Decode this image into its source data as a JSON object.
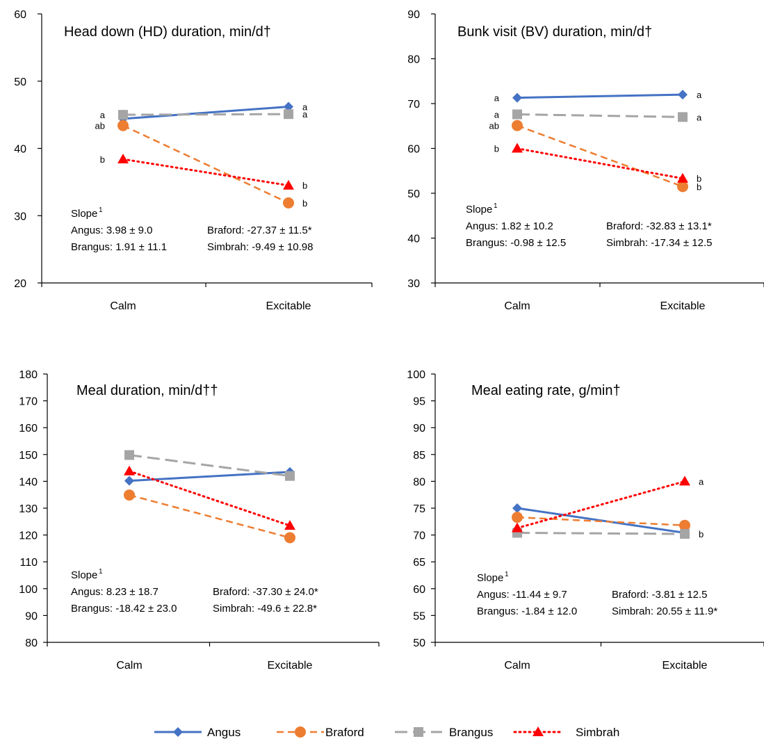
{
  "legend": [
    {
      "name": "Angus",
      "color": "#4472C4",
      "dash": "solid",
      "marker": "diamond"
    },
    {
      "name": "Braford",
      "color": "#ED7D31",
      "dash": "dash",
      "marker": "circle"
    },
    {
      "name": "Brangus",
      "color": "#A5A5A5",
      "dash": "longdash",
      "marker": "square"
    },
    {
      "name": "Simbrah",
      "color": "#FF0000",
      "dash": "dot",
      "marker": "triangle"
    }
  ],
  "chart_data": [
    {
      "type": "line",
      "title": "Head down (HD) duration, min/d†",
      "categories": [
        "Calm",
        "Excitable"
      ],
      "ylim": [
        20,
        60
      ],
      "yticks": [
        20,
        30,
        40,
        50,
        60
      ],
      "series": [
        {
          "name": "Angus",
          "values": [
            44.4,
            46.2
          ],
          "letters": [
            "",
            "a"
          ]
        },
        {
          "name": "Braford",
          "values": [
            43.4,
            31.9
          ],
          "letters": [
            "ab",
            "b"
          ]
        },
        {
          "name": "Brangus",
          "values": [
            45.0,
            45.1
          ],
          "letters": [
            "a",
            "a"
          ]
        },
        {
          "name": "Simbrah",
          "values": [
            38.4,
            34.5
          ],
          "letters": [
            "b",
            "b"
          ]
        }
      ],
      "slope_heading": "Slope",
      "slope_sup": "1",
      "slopes": [
        "Angus: 3.98 ± 9.0",
        "Braford: -27.37 ± 11.5*",
        "Brangus: 1.91 ± 11.1",
        "Simbrah: -9.49  ± 10.98"
      ]
    },
    {
      "type": "line",
      "title": "Bunk visit (BV) duration,  min/d†",
      "categories": [
        "Calm",
        "Excitable"
      ],
      "ylim": [
        30,
        90
      ],
      "yticks": [
        30,
        40,
        50,
        60,
        70,
        80,
        90
      ],
      "series": [
        {
          "name": "Angus",
          "values": [
            71.3,
            72.0
          ],
          "letters": [
            "a",
            "a"
          ]
        },
        {
          "name": "Braford",
          "values": [
            65.1,
            51.5
          ],
          "letters": [
            "ab",
            "b"
          ]
        },
        {
          "name": "Brangus",
          "values": [
            67.6,
            67.0
          ],
          "letters": [
            "a",
            "a"
          ]
        },
        {
          "name": "Simbrah",
          "values": [
            60.0,
            53.3
          ],
          "letters": [
            "b",
            "b"
          ]
        }
      ],
      "slope_heading": "Slope",
      "slope_sup": "1",
      "slopes": [
        "Angus: 1.82 ± 10.2",
        "Braford: -32.83 ± 13.1*",
        "Brangus: -0.98 ± 12.5",
        "Simbrah: -17.34  ± 12.5"
      ]
    },
    {
      "type": "line",
      "title": "Meal duration, min/d††",
      "categories": [
        "Calm",
        "Excitable"
      ],
      "ylim": [
        80,
        180
      ],
      "yticks": [
        80,
        90,
        100,
        110,
        120,
        130,
        140,
        150,
        160,
        170,
        180
      ],
      "series": [
        {
          "name": "Angus",
          "values": [
            140.2,
            143.5
          ],
          "letters": [
            "",
            ""
          ]
        },
        {
          "name": "Braford",
          "values": [
            134.9,
            119.0
          ],
          "letters": [
            "",
            ""
          ]
        },
        {
          "name": "Brangus",
          "values": [
            149.8,
            142.0
          ],
          "letters": [
            "",
            ""
          ]
        },
        {
          "name": "Simbrah",
          "values": [
            143.8,
            123.5
          ],
          "letters": [
            "",
            ""
          ]
        }
      ],
      "slope_heading": "Slope",
      "slope_sup": "1",
      "slopes": [
        "Angus: 8.23 ± 18.7",
        "Braford: -37.30 ± 24.0*",
        "Brangus: -18.42 ± 23.0",
        "Simbrah: -49.6 ± 22.8*"
      ]
    },
    {
      "type": "line",
      "title": "Meal eating rate, g/min†",
      "categories": [
        "Calm",
        "Excitable"
      ],
      "ylim": [
        50,
        100
      ],
      "yticks": [
        50,
        55,
        60,
        65,
        70,
        75,
        80,
        85,
        90,
        95,
        100
      ],
      "series": [
        {
          "name": "Angus",
          "values": [
            75.0,
            70.4
          ],
          "letters": [
            "",
            ""
          ]
        },
        {
          "name": "Braford",
          "values": [
            73.3,
            71.8
          ],
          "letters": [
            "",
            ""
          ]
        },
        {
          "name": "Brangus",
          "values": [
            70.4,
            70.2
          ],
          "letters": [
            "",
            "b"
          ]
        },
        {
          "name": "Simbrah",
          "values": [
            71.3,
            80.0
          ],
          "letters": [
            "",
            "a"
          ]
        }
      ],
      "slope_heading": "Slope",
      "slope_sup": "1",
      "slopes": [
        "Angus: -11.44 ± 9.7",
        "Braford: -3.81 ± 12.5",
        "Brangus: -1.84 ± 12.0",
        "Simbrah: 20.55 ± 11.9*"
      ]
    }
  ]
}
